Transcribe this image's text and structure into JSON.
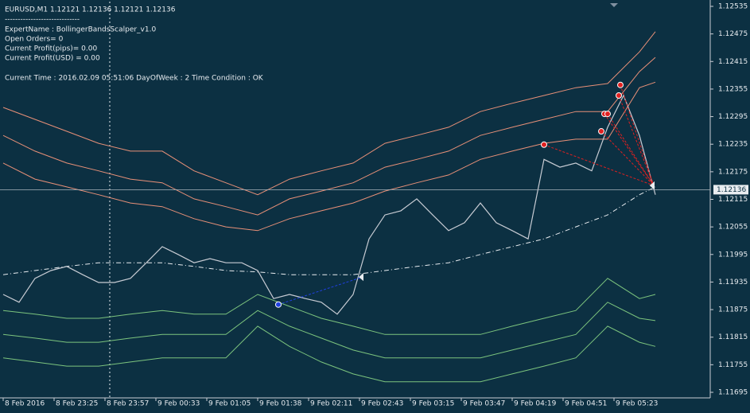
{
  "chart_data": {
    "type": "price-chart",
    "title": "EURUSD,M1  1.12121 1.12136 1.12121 1.12136",
    "info": [
      "ExpertName : BollingerBandsScalper_v1.0",
      "Open Orders= 0",
      "Current Profit(pips)= 0.00",
      "Current Profit(USD) = 0.00",
      "Current Time : 2016.02.09 05:51:06 DayOfWeek : 2 Time Condition : OK"
    ],
    "separator": "-----------------------------",
    "xlim": [
      0,
      222
    ],
    "ylim": [
      1.11695,
      1.12535
    ],
    "yticks": [
      1.12535,
      1.12475,
      1.12415,
      1.12355,
      1.12295,
      1.12235,
      1.12175,
      1.12115,
      1.12055,
      1.11995,
      1.11935,
      1.11875,
      1.11815,
      1.11755,
      1.11695
    ],
    "xticks": [
      {
        "value": 0,
        "label": "8 Feb 2016"
      },
      {
        "value": 16,
        "label": "8 Feb 23:25"
      },
      {
        "value": 32,
        "label": "8 Feb 23:57"
      },
      {
        "value": 48,
        "label": "9 Feb 00:33"
      },
      {
        "value": 64,
        "label": "9 Feb 01:05"
      },
      {
        "value": 80,
        "label": "9 Feb 01:38"
      },
      {
        "value": 96,
        "label": "9 Feb 02:11"
      },
      {
        "value": 112,
        "label": "9 Feb 02:43"
      },
      {
        "value": 128,
        "label": "9 Feb 03:15"
      },
      {
        "value": 144,
        "label": "9 Feb 03:47"
      },
      {
        "value": 160,
        "label": "9 Feb 04:19"
      },
      {
        "value": 176,
        "label": "9 Feb 04:51"
      },
      {
        "value": 192,
        "label": "9 Feb 05:23"
      }
    ],
    "current_price": 1.12136,
    "price": {
      "color": "#c8ccd4",
      "x": [
        0,
        5,
        10,
        15,
        20,
        25,
        30,
        35,
        40,
        45,
        50,
        55,
        60,
        65,
        70,
        75,
        80,
        85,
        90,
        95,
        100,
        105,
        110,
        115,
        120,
        125,
        130,
        135,
        140,
        145,
        150,
        155,
        160,
        165,
        170,
        175,
        180,
        185,
        190,
        195,
        200,
        205
      ],
      "values": [
        1.11908,
        1.11891,
        1.11943,
        1.1196,
        1.11969,
        1.11951,
        1.11934,
        1.11934,
        1.11943,
        1.11977,
        1.12012,
        1.11995,
        1.11977,
        1.11986,
        1.11977,
        1.11977,
        1.1196,
        1.11899,
        1.11908,
        1.11899,
        1.11891,
        1.11865,
        1.11908,
        1.12029,
        1.12081,
        1.1209,
        1.12116,
        1.12081,
        1.12047,
        1.12064,
        1.12107,
        1.12064,
        1.12047,
        1.12029,
        1.12202,
        1.12185,
        1.12194,
        1.12177,
        1.12272,
        1.12341,
        1.12254,
        1.12125
      ]
    },
    "bands": {
      "x": [
        0,
        10,
        20,
        30,
        40,
        50,
        60,
        70,
        80,
        90,
        100,
        110,
        120,
        130,
        140,
        150,
        160,
        170,
        180,
        190,
        200,
        205
      ],
      "series": [
        {
          "color": "#e89078",
          "values": [
            1.12315,
            1.12289,
            1.12263,
            1.12237,
            1.1222,
            1.1222,
            1.12177,
            1.12151,
            1.12125,
            1.12159,
            1.12177,
            1.12194,
            1.12237,
            1.12254,
            1.12272,
            1.12306,
            1.12324,
            1.12341,
            1.12358,
            1.12367,
            1.12436,
            1.1248
          ]
        },
        {
          "color": "#e89078",
          "values": [
            1.12254,
            1.1222,
            1.12194,
            1.12177,
            1.12159,
            1.12151,
            1.12116,
            1.12099,
            1.12081,
            1.12116,
            1.12133,
            1.12151,
            1.12185,
            1.12202,
            1.1222,
            1.12254,
            1.12272,
            1.12289,
            1.12306,
            1.12306,
            1.12393,
            1.12424
          ]
        },
        {
          "color": "#e89078",
          "values": [
            1.12194,
            1.12159,
            1.12142,
            1.12125,
            1.12107,
            1.12099,
            1.12073,
            1.12055,
            1.12047,
            1.12073,
            1.1209,
            1.12107,
            1.12133,
            1.12151,
            1.12168,
            1.12202,
            1.1222,
            1.12237,
            1.12246,
            1.12246,
            1.12358,
            1.1237
          ]
        },
        {
          "color": "#e8ecf0",
          "dash": true,
          "values": [
            1.11951,
            1.1196,
            1.11969,
            1.11977,
            1.11977,
            1.11977,
            1.11969,
            1.1196,
            1.11957,
            1.11951,
            1.11951,
            1.11951,
            1.1196,
            1.11969,
            1.11977,
            1.11995,
            1.12012,
            1.12029,
            1.12055,
            1.12081,
            1.12125,
            1.12142
          ]
        },
        {
          "color": "#7cc47e",
          "values": [
            1.11873,
            1.11865,
            1.11856,
            1.11856,
            1.11865,
            1.11873,
            1.11865,
            1.11865,
            1.11908,
            1.11882,
            1.11856,
            1.11839,
            1.11821,
            1.11821,
            1.11821,
            1.11821,
            1.11839,
            1.11856,
            1.11873,
            1.11943,
            1.11899,
            1.11908
          ]
        },
        {
          "color": "#7cc47e",
          "values": [
            1.11821,
            1.11813,
            1.11804,
            1.11804,
            1.11813,
            1.11821,
            1.11821,
            1.11821,
            1.11873,
            1.11839,
            1.11813,
            1.11787,
            1.1177,
            1.1177,
            1.1177,
            1.1177,
            1.11787,
            1.11804,
            1.11821,
            1.11891,
            1.11856,
            1.11851
          ]
        },
        {
          "color": "#7cc47e",
          "values": [
            1.1177,
            1.11761,
            1.11752,
            1.11752,
            1.11761,
            1.1177,
            1.1177,
            1.1177,
            1.11839,
            1.11795,
            1.11761,
            1.11735,
            1.11718,
            1.11718,
            1.11718,
            1.11718,
            1.11735,
            1.11752,
            1.1177,
            1.11839,
            1.11804,
            1.11795
          ]
        }
      ]
    },
    "orders": [
      {
        "color": "#e02020",
        "open_x": 170,
        "open_price": 1.12234,
        "close_x": 204.5,
        "close_price": 1.12145
      },
      {
        "color": "#e02020",
        "open_x": 188,
        "open_price": 1.12263,
        "close_x": 204.5,
        "close_price": 1.12145
      },
      {
        "color": "#e02020",
        "open_x": 189,
        "open_price": 1.12301,
        "close_x": 204.5,
        "close_price": 1.12145
      },
      {
        "color": "#e02020",
        "open_x": 190,
        "open_price": 1.12301,
        "close_x": 204.5,
        "close_price": 1.12145
      },
      {
        "color": "#e02020",
        "open_x": 193.5,
        "open_price": 1.12341,
        "close_x": 204.5,
        "close_price": 1.12145
      },
      {
        "color": "#e02020",
        "open_x": 194,
        "open_price": 1.12364,
        "close_x": 204.5,
        "close_price": 1.12145
      },
      {
        "color": "#2040e0",
        "open_x": 86.5,
        "open_price": 1.11886,
        "close_x": 113,
        "close_price": 1.11946
      }
    ]
  }
}
